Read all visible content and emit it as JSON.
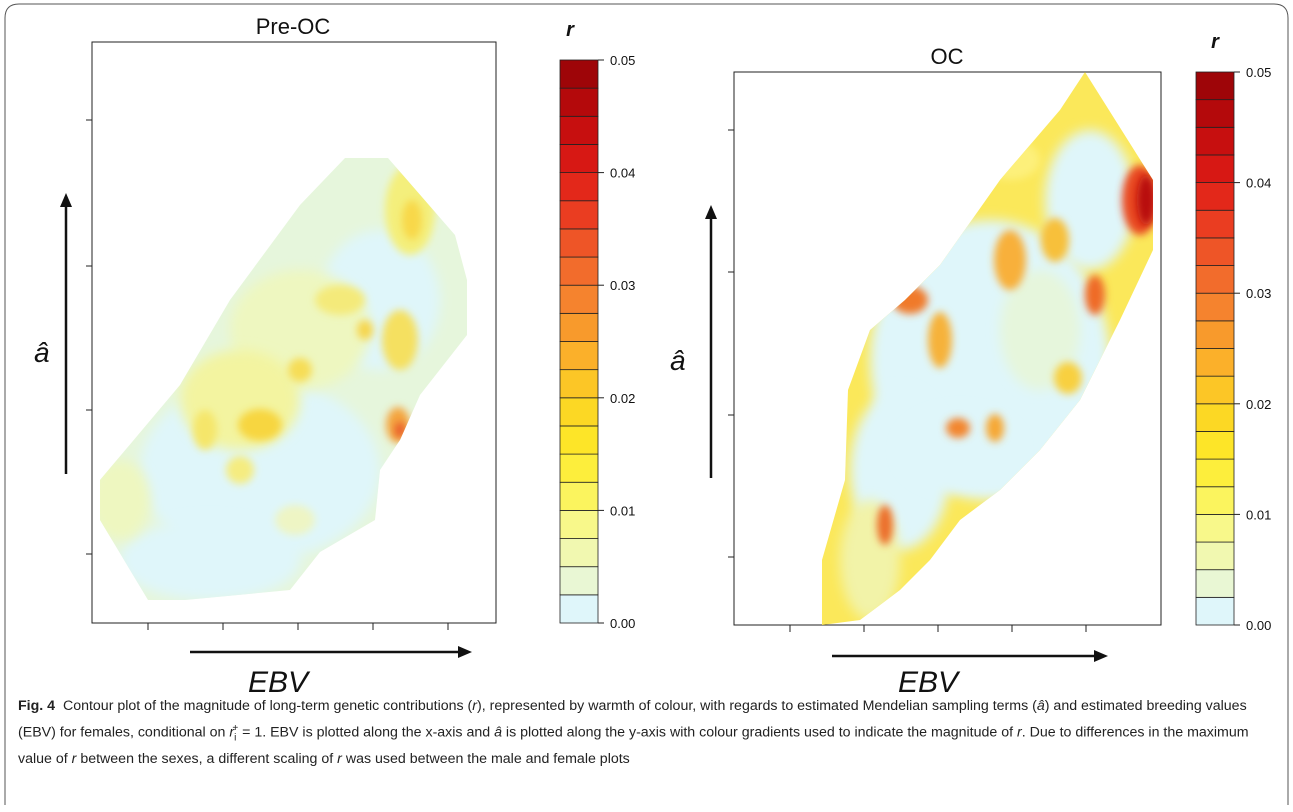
{
  "figure": {
    "caption_label": "Fig. 4",
    "caption_part1": "Contour plot of the magnitude of long-term genetic contributions (",
    "caption_r1": "r",
    "caption_part2": "), represented by warmth of colour, with regards to estimated Mendelian sampling terms (",
    "caption_a": "â",
    "caption_part3": ") and estimated breeding values (EBV) for females, conditional on ",
    "caption_cond": "r",
    "caption_cond_sup": "+",
    "caption_cond_sub": "i",
    "caption_part4": " = 1. EBV is plotted along the x-axis and ",
    "caption_a2": "â",
    "caption_part5": " is plotted along the y-axis with colour gradients used to indicate the magnitude of ",
    "caption_r2": "r",
    "caption_part6": ". Due to differences in the maximum value of ",
    "caption_r3": "r",
    "caption_part7": " between the sexes, a different scaling of ",
    "caption_r4": "r",
    "caption_part8": " was used between the male and female plots"
  },
  "colors": {
    "scale": [
      "#dff6fa",
      "#e9f7d4",
      "#f1f8b0",
      "#f8f88a",
      "#fbf45e",
      "#fdee3c",
      "#fde528",
      "#fcd824",
      "#fcc626",
      "#fbb02a",
      "#f89a2c",
      "#f5832e",
      "#f26c2c",
      "#ee5527",
      "#ea3d21",
      "#e3281a",
      "#d71814",
      "#c70f0f",
      "#b4090b",
      "#9e0508"
    ]
  },
  "chart_data": [
    {
      "type": "heatmap",
      "title": "Pre-OC",
      "xlabel": "EBV",
      "ylabel": "â",
      "colorbar_label": "r",
      "colorbar_ticks": [
        "0.00",
        "0.01",
        "0.02",
        "0.03",
        "0.04",
        "0.05"
      ],
      "colorbar_range": [
        0,
        0.05
      ],
      "legend": "right",
      "grid": false,
      "max_value": 0.025
    },
    {
      "type": "heatmap",
      "title": "OC",
      "xlabel": "EBV",
      "ylabel": "â",
      "colorbar_label": "r",
      "colorbar_ticks": [
        "0.00",
        "0.01",
        "0.02",
        "0.03",
        "0.04",
        "0.05"
      ],
      "colorbar_range": [
        0,
        0.05
      ],
      "legend": "right",
      "grid": false,
      "max_value": 0.05
    }
  ]
}
